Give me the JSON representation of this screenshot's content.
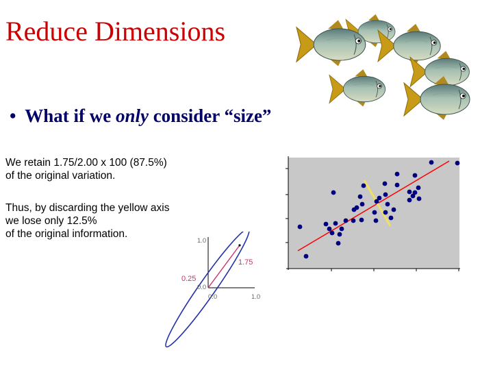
{
  "slide": {
    "title": "Reduce Dimensions",
    "bullet": {
      "marker": "•",
      "before": "What if we ",
      "emphasis": "only",
      "after": " consider “size”"
    },
    "para1": [
      "We retain 1.75/2.00 x 100 (87.5%)",
      "of the original variation."
    ],
    "para2": [
      "Thus, by discarding the yellow axis",
      "we lose only 12.5%",
      "of the original information."
    ]
  },
  "ellipse_diagram": {
    "y_top_label": "1.0",
    "major_label": "1.75",
    "minor_label": "0.25",
    "origin_y_label": "0.0",
    "origin_x_label": "0.0",
    "x_end_label": "1.0",
    "colors": {
      "ellipse": "#2233aa",
      "major_axis": "#cc3366",
      "minor_label": "#cc3366",
      "axes": "#000000"
    }
  },
  "scatter": {
    "colors": {
      "background": "#c8c8c8",
      "points": "#000080",
      "fit_line": "#ff0000",
      "minor_axis": "#f0e060"
    },
    "points": [
      [
        630,
        237
      ],
      [
        668,
        238
      ],
      [
        531,
        271
      ],
      [
        580,
        254
      ],
      [
        562,
        268
      ],
      [
        580,
        270
      ],
      [
        606,
        256
      ],
      [
        487,
        281
      ],
      [
        526,
        287
      ],
      [
        554,
        289
      ],
      [
        563,
        284
      ],
      [
        598,
        280
      ],
      [
        611,
        274
      ],
      [
        529,
        298
      ],
      [
        521,
        303
      ],
      [
        517,
        306
      ],
      [
        550,
        294
      ],
      [
        566,
        298
      ],
      [
        575,
        306
      ],
      [
        598,
        292
      ],
      [
        603,
        286
      ],
      [
        612,
        290
      ],
      [
        438,
        331
      ],
      [
        476,
        327
      ],
      [
        481,
        334
      ],
      [
        490,
        326
      ],
      [
        485,
        340
      ],
      [
        496,
        342
      ],
      [
        499,
        334
      ],
      [
        505,
        322
      ],
      [
        516,
        322
      ],
      [
        528,
        321
      ],
      [
        549,
        322
      ],
      [
        547,
        310
      ],
      [
        563,
        310
      ],
      [
        571,
        318
      ],
      [
        447,
        374
      ],
      [
        494,
        355
      ],
      [
        606,
        281
      ]
    ]
  }
}
